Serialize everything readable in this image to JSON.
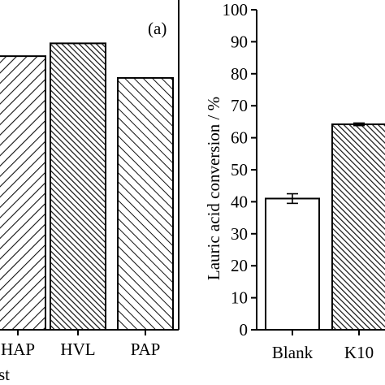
{
  "chart_data": [
    {
      "panel_label": "(a)",
      "type": "bar",
      "categories": [
        "HAP",
        "HVL",
        "PAP"
      ],
      "values": [
        85.5,
        89.5,
        78.7
      ],
      "xlabel_fragment": "st",
      "patterns": [
        "diagonal-forward",
        "diagonal-back-dense",
        "diagonal-back"
      ]
    },
    {
      "type": "bar",
      "categories": [
        "Blank",
        "K10"
      ],
      "values": [
        41.0,
        64.2
      ],
      "errors": [
        1.5,
        0.4
      ],
      "ylabel": "Lauric acid conversion / %",
      "ylim": [
        0,
        100
      ],
      "yticks": [
        "0",
        "10",
        "20",
        "30",
        "40",
        "50",
        "60",
        "70",
        "80",
        "90",
        "100"
      ],
      "patterns": [
        "none",
        "diagonal-back-dense"
      ]
    }
  ]
}
